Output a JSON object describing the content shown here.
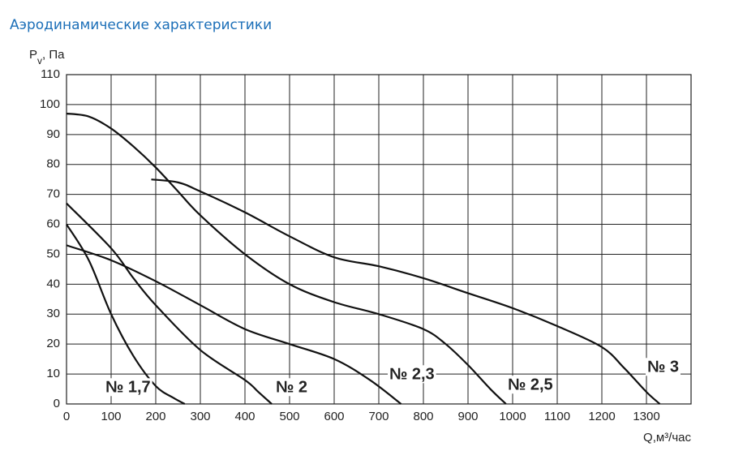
{
  "chart_data": {
    "type": "line",
    "title": "Аэродинамические характеристики",
    "ylabel": {
      "main": "P",
      "sub": "v",
      "rest": ", Па"
    },
    "xlabel": "Q,м³/час",
    "xlim": [
      0,
      1400
    ],
    "xticks": [
      0,
      100,
      200,
      300,
      400,
      500,
      600,
      700,
      800,
      900,
      1000,
      1100,
      1200,
      1300
    ],
    "ylim": [
      0,
      110
    ],
    "yticks": [
      0,
      10,
      20,
      30,
      40,
      50,
      60,
      70,
      80,
      90,
      100,
      110
    ],
    "grid": true,
    "series": [
      {
        "name": "№ 1,7",
        "color": "#111111",
        "x": [
          0,
          50,
          100,
          150,
          200,
          240,
          265
        ],
        "values": [
          60,
          48,
          30,
          16,
          6,
          2,
          0
        ]
      },
      {
        "name": "№ 2",
        "color": "#111111",
        "x": [
          0,
          100,
          150,
          200,
          300,
          400,
          430,
          460
        ],
        "values": [
          67,
          52,
          42,
          33,
          18,
          8,
          4,
          0
        ]
      },
      {
        "name": "№ 2,3",
        "color": "#111111",
        "x": [
          0,
          100,
          200,
          300,
          400,
          500,
          600,
          680,
          750
        ],
        "values": [
          53,
          48,
          41,
          33,
          25,
          20,
          15,
          8,
          0
        ]
      },
      {
        "name": "№ 2,5",
        "color": "#111111",
        "x": [
          0,
          50,
          100,
          150,
          200,
          250,
          300,
          400,
          500,
          600,
          700,
          800,
          850,
          900,
          950,
          985
        ],
        "values": [
          97,
          96,
          92,
          86,
          79,
          71,
          63,
          50,
          40,
          34,
          30,
          25,
          20,
          13,
          5,
          0
        ]
      },
      {
        "name": "№ 3",
        "color": "#111111",
        "x": [
          190,
          250,
          300,
          400,
          500,
          600,
          700,
          800,
          900,
          1000,
          1100,
          1200,
          1250,
          1300,
          1330
        ],
        "values": [
          75,
          74,
          71,
          64,
          56,
          49,
          46,
          42,
          37,
          32,
          26,
          19,
          12,
          4,
          0
        ]
      }
    ]
  }
}
